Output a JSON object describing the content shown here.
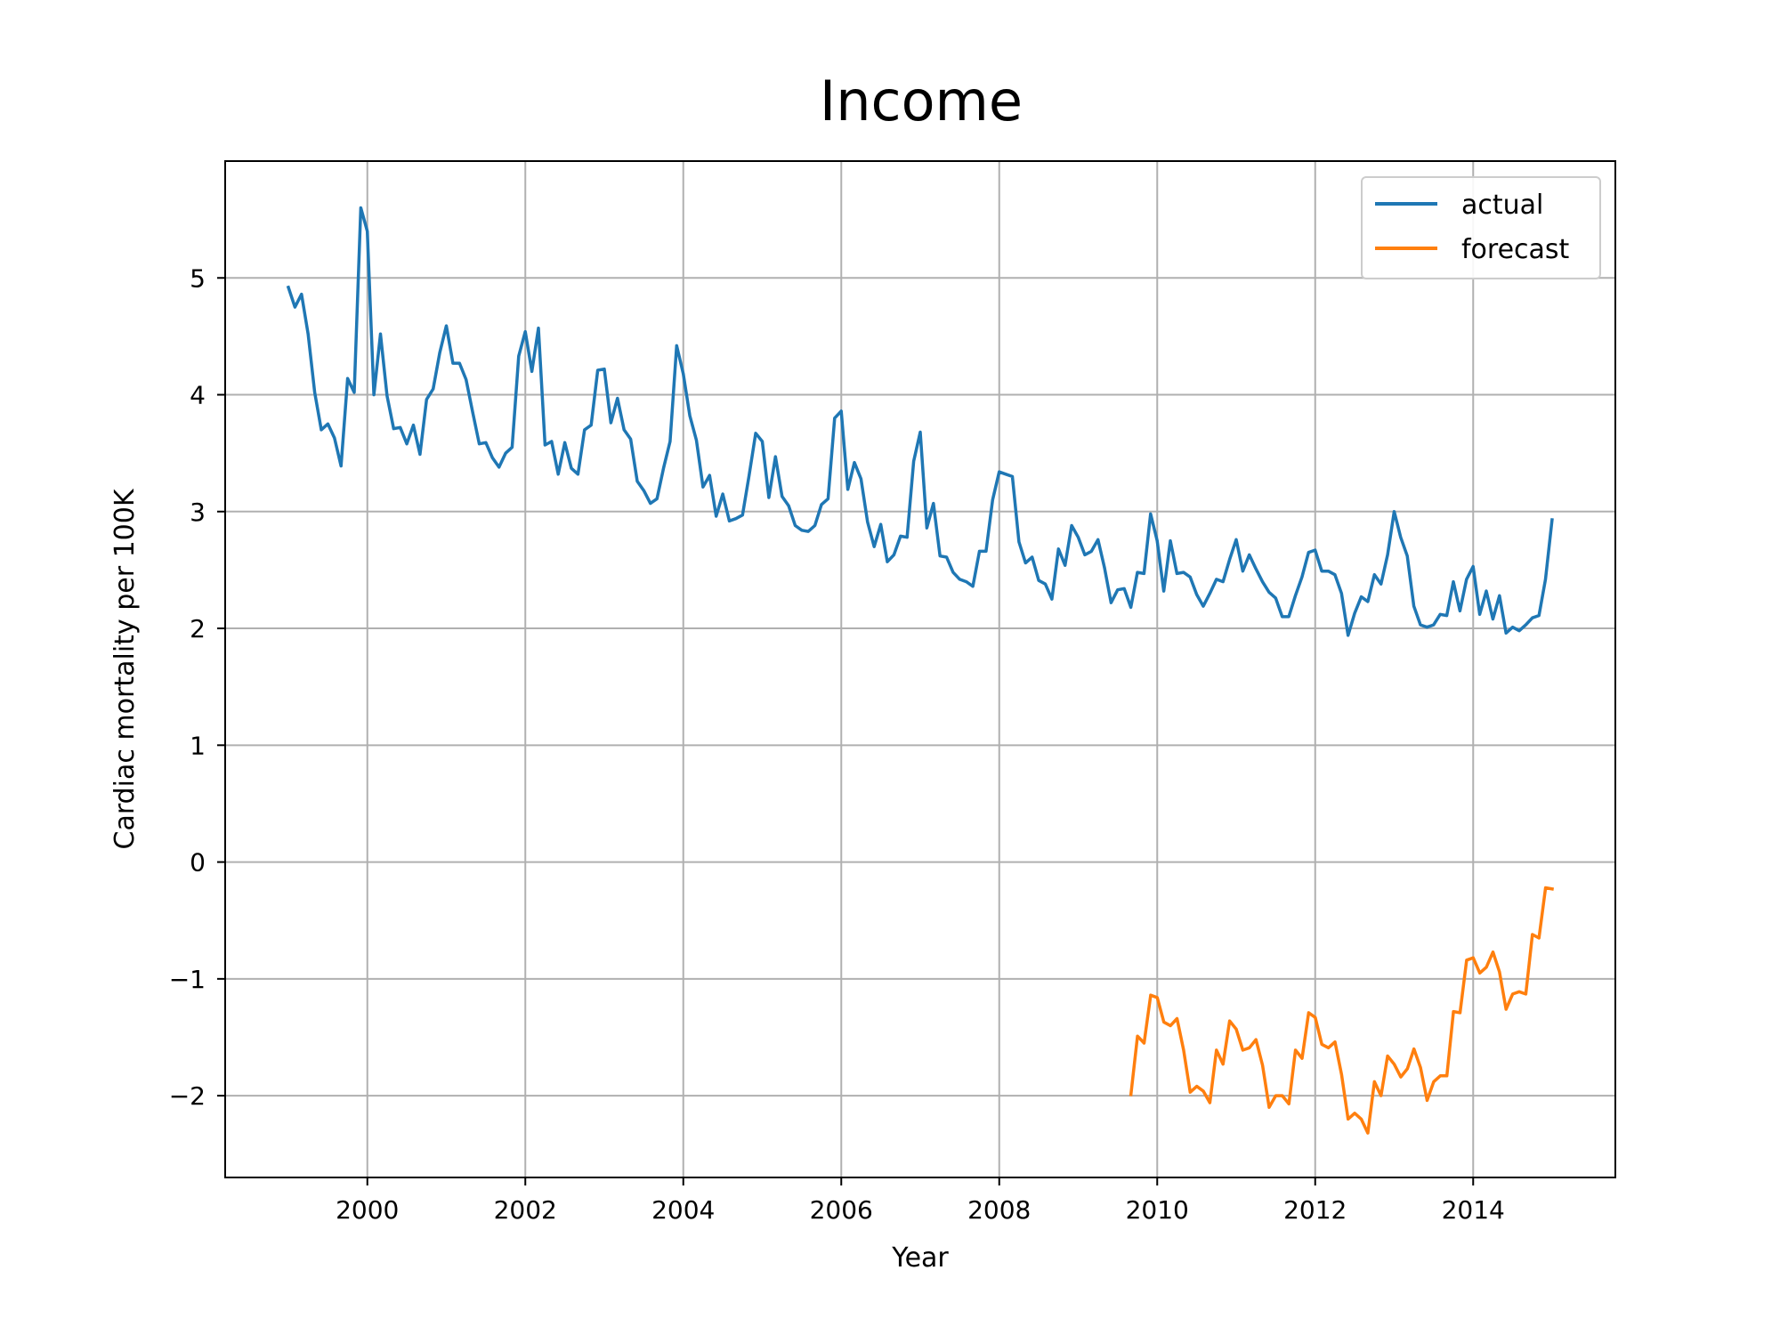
{
  "chart_data": {
    "type": "line",
    "title": "Income",
    "xlabel": "Year",
    "ylabel": "Cardiac mortality per 100K",
    "xlim": [
      1998.2,
      2015.8
    ],
    "ylim": [
      -2.7,
      6.0
    ],
    "x_ticks": [
      2000,
      2002,
      2004,
      2006,
      2008,
      2010,
      2012,
      2014
    ],
    "x_tick_labels": [
      "2000",
      "2002",
      "2004",
      "2006",
      "2008",
      "2010",
      "2012",
      "2014"
    ],
    "y_ticks": [
      -2,
      -1,
      0,
      1,
      2,
      3,
      4,
      5
    ],
    "y_tick_labels": [
      "−2",
      "−1",
      "0",
      "1",
      "2",
      "3",
      "4",
      "5"
    ],
    "grid": true,
    "legend_position": "top-right",
    "series": [
      {
        "name": "actual",
        "color": "#1f77b4",
        "x_start": 1999.0,
        "x_step": 0.08333,
        "values": [
          4.92,
          4.75,
          4.86,
          4.52,
          4.02,
          3.7,
          3.75,
          3.63,
          3.39,
          4.14,
          4.02,
          5.6,
          5.4,
          4.0,
          4.52,
          3.99,
          3.71,
          3.72,
          3.58,
          3.74,
          3.49,
          3.96,
          4.05,
          4.36,
          4.59,
          4.27,
          4.27,
          4.13,
          3.85,
          3.58,
          3.59,
          3.46,
          3.38,
          3.5,
          3.55,
          4.33,
          4.54,
          4.2,
          4.57,
          3.57,
          3.6,
          3.32,
          3.59,
          3.37,
          3.32,
          3.7,
          3.74,
          4.21,
          4.22,
          3.76,
          3.97,
          3.7,
          3.62,
          3.26,
          3.18,
          3.07,
          3.11,
          3.37,
          3.6,
          4.42,
          4.18,
          3.82,
          3.61,
          3.21,
          3.31,
          2.96,
          3.15,
          2.92,
          2.94,
          2.97,
          3.31,
          3.67,
          3.6,
          3.12,
          3.47,
          3.13,
          3.05,
          2.88,
          2.84,
          2.83,
          2.88,
          3.06,
          3.11,
          3.8,
          3.86,
          3.19,
          3.42,
          3.28,
          2.91,
          2.7,
          2.89,
          2.57,
          2.63,
          2.79,
          2.78,
          3.43,
          3.68,
          2.86,
          3.07,
          2.62,
          2.61,
          2.48,
          2.42,
          2.4,
          2.36,
          2.66,
          2.66,
          3.1,
          3.34,
          3.32,
          3.3,
          2.74,
          2.56,
          2.61,
          2.41,
          2.38,
          2.25,
          2.68,
          2.54,
          2.88,
          2.78,
          2.63,
          2.66,
          2.76,
          2.52,
          2.22,
          2.33,
          2.34,
          2.18,
          2.48,
          2.47,
          2.98,
          2.75,
          2.32,
          2.75,
          2.47,
          2.48,
          2.44,
          2.29,
          2.19,
          2.3,
          2.42,
          2.4,
          2.59,
          2.76,
          2.49,
          2.63,
          2.51,
          2.4,
          2.31,
          2.26,
          2.1,
          2.1,
          2.28,
          2.44,
          2.65,
          2.67,
          2.49,
          2.49,
          2.46,
          2.3,
          1.94,
          2.13,
          2.27,
          2.23,
          2.46,
          2.38,
          2.63,
          3.0,
          2.78,
          2.62,
          2.19,
          2.03,
          2.01,
          2.03,
          2.12,
          2.11,
          2.4,
          2.15,
          2.42,
          2.53,
          2.12,
          2.32,
          2.08,
          2.28,
          1.96,
          2.01,
          1.98,
          2.03,
          2.09,
          2.11,
          2.42,
          2.93
        ]
      },
      {
        "name": "forecast",
        "color": "#ff7f0e",
        "x_start": 2009.667,
        "x_step": 0.08333,
        "values": [
          -1.99,
          -1.49,
          -1.55,
          -1.14,
          -1.16,
          -1.37,
          -1.4,
          -1.34,
          -1.61,
          -1.97,
          -1.92,
          -1.96,
          -2.06,
          -1.61,
          -1.73,
          -1.36,
          -1.43,
          -1.61,
          -1.59,
          -1.52,
          -1.74,
          -2.1,
          -2.0,
          -2.0,
          -2.07,
          -1.61,
          -1.68,
          -1.29,
          -1.33,
          -1.56,
          -1.59,
          -1.54,
          -1.82,
          -2.2,
          -2.15,
          -2.2,
          -2.32,
          -1.88,
          -2.0,
          -1.66,
          -1.73,
          -1.84,
          -1.77,
          -1.6,
          -1.76,
          -2.04,
          -1.88,
          -1.83,
          -1.83,
          -1.28,
          -1.29,
          -0.84,
          -0.82,
          -0.95,
          -0.9,
          -0.77,
          -0.94,
          -1.26,
          -1.13,
          -1.11,
          -1.13,
          -0.62,
          -0.65,
          -0.22,
          -0.23
        ]
      }
    ]
  }
}
